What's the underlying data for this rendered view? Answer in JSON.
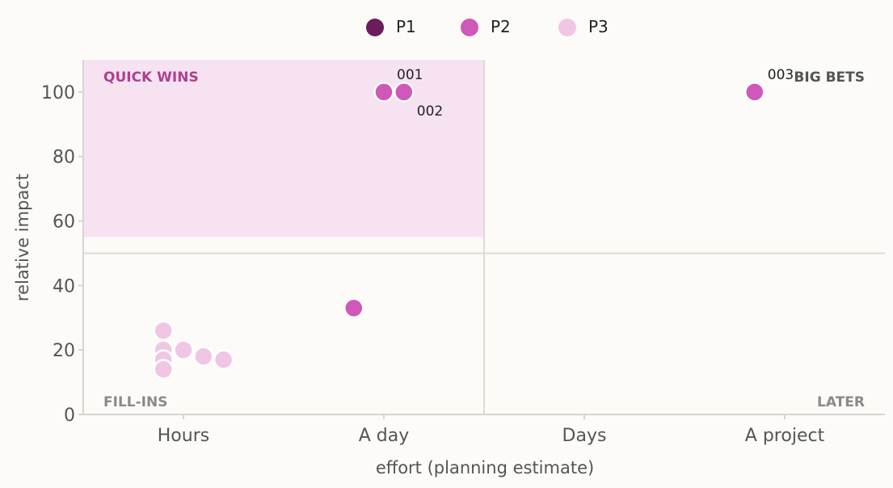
{
  "chart_data": {
    "type": "scatter",
    "xlabel": "effort (planning estimate)",
    "ylabel": "relative impact",
    "x_categories": [
      "Hours",
      "A day",
      "Days",
      "A project"
    ],
    "ylim": [
      0,
      110
    ],
    "y_ticks": [
      "0",
      "20",
      "40",
      "60",
      "80",
      "100"
    ],
    "legend": {
      "placement": "top-center",
      "entries": [
        {
          "name": "P1",
          "color": "#6b1d5c"
        },
        {
          "name": "P2",
          "color": "#d058b8"
        },
        {
          "name": "P3",
          "color": "#f0c6e4"
        }
      ]
    },
    "divider": {
      "x_between": [
        "A day",
        "Days"
      ],
      "y": 50
    },
    "quick_wins_region": {
      "x_from": "Hours",
      "x_to": "A day",
      "y_from": 55,
      "y_to": 110,
      "color": "#f7e2f2"
    },
    "quadrants": [
      {
        "label": "QUICK WINS",
        "position": "top-left",
        "color": "#b0408e"
      },
      {
        "label": "BIG BETS",
        "position": "top-right",
        "color": "#555555"
      },
      {
        "label": "FILL-INS",
        "position": "bottom-left",
        "color": "#8a8a8a"
      },
      {
        "label": "LATER",
        "position": "bottom-right",
        "color": "#8a8a8a"
      }
    ],
    "points": [
      {
        "x": "A day",
        "offset": 0.0,
        "y": 100,
        "priority": "P2",
        "label": "001",
        "label_pos": "above-right"
      },
      {
        "x": "A day",
        "offset": 0.1,
        "y": 100,
        "priority": "P2",
        "label": "002",
        "label_pos": "below-right"
      },
      {
        "x": "A project",
        "offset": -0.15,
        "y": 100,
        "priority": "P2",
        "label": "003",
        "label_pos": "above-right"
      },
      {
        "x": "A day",
        "offset": -0.15,
        "y": 33,
        "priority": "P2",
        "label": ""
      },
      {
        "x": "Hours",
        "offset": -0.1,
        "y": 26,
        "priority": "P3",
        "label": ""
      },
      {
        "x": "Hours",
        "offset": -0.1,
        "y": 20,
        "priority": "P3",
        "label": ""
      },
      {
        "x": "Hours",
        "offset": -0.1,
        "y": 17,
        "priority": "P3",
        "label": ""
      },
      {
        "x": "Hours",
        "offset": -0.1,
        "y": 14,
        "priority": "P3",
        "label": ""
      },
      {
        "x": "Hours",
        "offset": 0.0,
        "y": 20,
        "priority": "P3",
        "label": ""
      },
      {
        "x": "Hours",
        "offset": 0.1,
        "y": 18,
        "priority": "P3",
        "label": ""
      },
      {
        "x": "Hours",
        "offset": 0.2,
        "y": 17,
        "priority": "P3",
        "label": ""
      }
    ]
  }
}
